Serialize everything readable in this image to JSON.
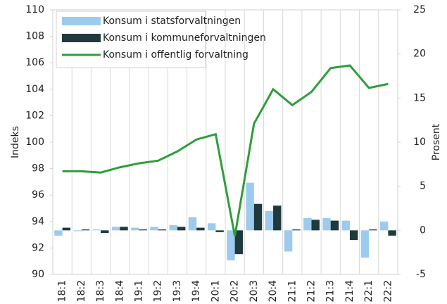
{
  "chart_data": {
    "type": "bar-line",
    "categories": [
      "18:1",
      "18:2",
      "18:3",
      "18:4",
      "19:1",
      "19:2",
      "19:3",
      "19:4",
      "20:1",
      "20:2",
      "20:3",
      "20:4",
      "21:1",
      "21:2",
      "21:3",
      "21:4",
      "22:1",
      "22:2"
    ],
    "series": [
      {
        "name": "Konsum i statsforvaltningen",
        "type": "bar",
        "axis": "y2",
        "color": "#9ccbee",
        "values": [
          -0.6,
          -0.1,
          0.1,
          0.4,
          0.3,
          0.4,
          0.6,
          1.5,
          0.8,
          -3.4,
          5.4,
          2.2,
          -2.4,
          1.4,
          1.4,
          1.1,
          -3.1,
          1.0
        ]
      },
      {
        "name": "Konsum i kommuneforvaltningen",
        "type": "bar",
        "axis": "y2",
        "color": "#1f3a3d",
        "values": [
          0.3,
          0.1,
          -0.3,
          0.4,
          0.1,
          0.1,
          0.4,
          0.3,
          -0.2,
          -2.7,
          3.0,
          2.8,
          0.1,
          1.2,
          1.1,
          -1.1,
          0.1,
          -0.6
        ]
      },
      {
        "name": "Konsum i offentlig forvaltning",
        "type": "line",
        "axis": "y",
        "color": "#2e9e3b",
        "values": [
          97.8,
          97.8,
          97.7,
          98.1,
          98.4,
          98.6,
          99.3,
          100.2,
          100.6,
          92.9,
          101.4,
          104.0,
          102.8,
          103.8,
          105.6,
          105.8,
          104.1,
          104.4
        ]
      }
    ],
    "ylabel": "Indeks",
    "y2label": "Prosent",
    "ylim": [
      90,
      110
    ],
    "yticks": [
      90,
      92,
      94,
      96,
      98,
      100,
      102,
      104,
      106,
      108,
      110
    ],
    "y2lim": [
      -5,
      25
    ],
    "y2ticks": [
      -5,
      0,
      5,
      10,
      15,
      20,
      25
    ],
    "grid": true,
    "legend": "upper left"
  }
}
